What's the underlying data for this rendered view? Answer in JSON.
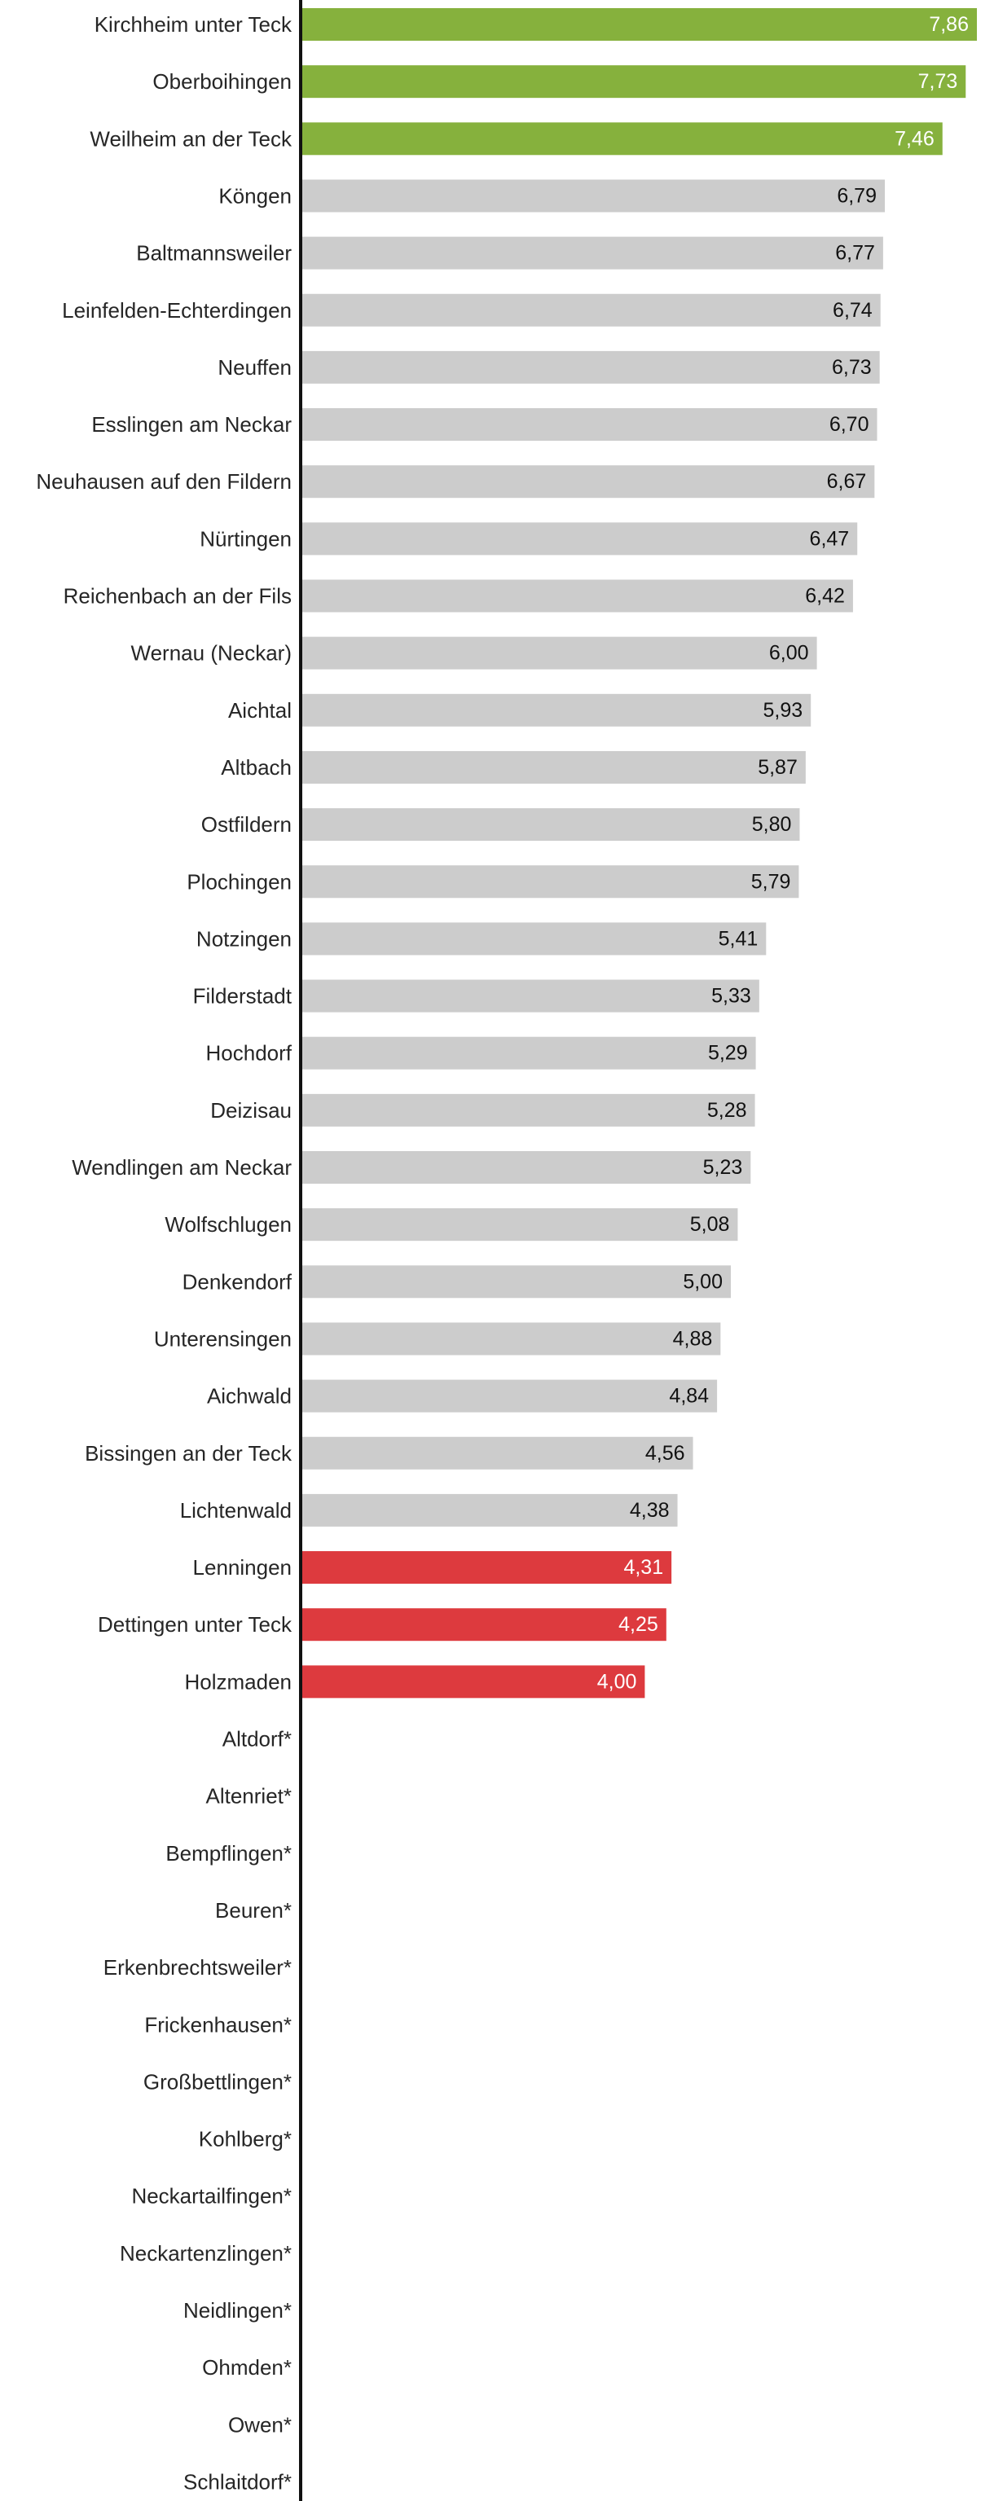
{
  "chart_data": {
    "type": "bar",
    "orientation": "horizontal",
    "title": "",
    "xlabel": "",
    "ylabel": "",
    "xlim": [
      0,
      7.86
    ],
    "grid": false,
    "legend": "none",
    "colors": {
      "top": "#86b13d",
      "middle": "#cccccc",
      "bottom": "#dd3a3e",
      "axis": "#111111",
      "label_dark": "#111111",
      "label_light": "#ffffff"
    },
    "categories": [
      "Kirchheim unter Teck",
      "Oberboihingen",
      "Weilheim an der Teck",
      "Köngen",
      "Baltmannsweiler",
      "Leinfelden-Echterdingen",
      "Neuffen",
      "Esslingen am Neckar",
      "Neuhausen auf den Fildern",
      "Nürtingen",
      "Reichenbach an der Fils",
      "Wernau (Neckar)",
      "Aichtal",
      "Altbach",
      "Ostfildern",
      "Plochingen",
      "Notzingen",
      "Filderstadt",
      "Hochdorf",
      "Deizisau",
      "Wendlingen am Neckar",
      "Wolfschlugen",
      "Denkendorf",
      "Unterensingen",
      "Aichwald",
      "Bissingen an der Teck",
      "Lichtenwald",
      "Lenningen",
      "Dettingen unter Teck",
      "Holzmaden",
      "Altdorf*",
      "Altenriet*",
      "Bempflingen*",
      "Beuren*",
      "Erkenbrechtsweiler*",
      "Frickenhausen*",
      "Großbettlingen*",
      "Kohlberg*",
      "Neckartailfingen*",
      "Neckartenzlingen*",
      "Neidlingen*",
      "Ohmden*",
      "Owen*",
      "Schlaitdorf*"
    ],
    "values": [
      7.86,
      7.73,
      7.46,
      6.79,
      6.77,
      6.74,
      6.73,
      6.7,
      6.67,
      6.47,
      6.42,
      6.0,
      5.93,
      5.87,
      5.8,
      5.79,
      5.41,
      5.33,
      5.29,
      5.28,
      5.23,
      5.08,
      5.0,
      4.88,
      4.84,
      4.56,
      4.38,
      4.31,
      4.25,
      4.0,
      null,
      null,
      null,
      null,
      null,
      null,
      null,
      null,
      null,
      null,
      null,
      null,
      null,
      null
    ],
    "value_labels": [
      "7,86",
      "7,73",
      "7,46",
      "6,79",
      "6,77",
      "6,74",
      "6,73",
      "6,70",
      "6,67",
      "6,47",
      "6,42",
      "6,00",
      "5,93",
      "5,87",
      "5,80",
      "5,79",
      "5,41",
      "5,33",
      "5,29",
      "5,28",
      "5,23",
      "5,08",
      "5,00",
      "4,88",
      "4,84",
      "4,56",
      "4,38",
      "4,31",
      "4,25",
      "4,00",
      "",
      "",
      "",
      "",
      "",
      "",
      "",
      "",
      "",
      "",
      "",
      "",
      "",
      ""
    ],
    "groups": [
      "top",
      "top",
      "top",
      "middle",
      "middle",
      "middle",
      "middle",
      "middle",
      "middle",
      "middle",
      "middle",
      "middle",
      "middle",
      "middle",
      "middle",
      "middle",
      "middle",
      "middle",
      "middle",
      "middle",
      "middle",
      "middle",
      "middle",
      "middle",
      "middle",
      "middle",
      "middle",
      "bottom",
      "bottom",
      "bottom",
      "none",
      "none",
      "none",
      "none",
      "none",
      "none",
      "none",
      "none",
      "none",
      "none",
      "none",
      "none",
      "none",
      "none"
    ]
  }
}
